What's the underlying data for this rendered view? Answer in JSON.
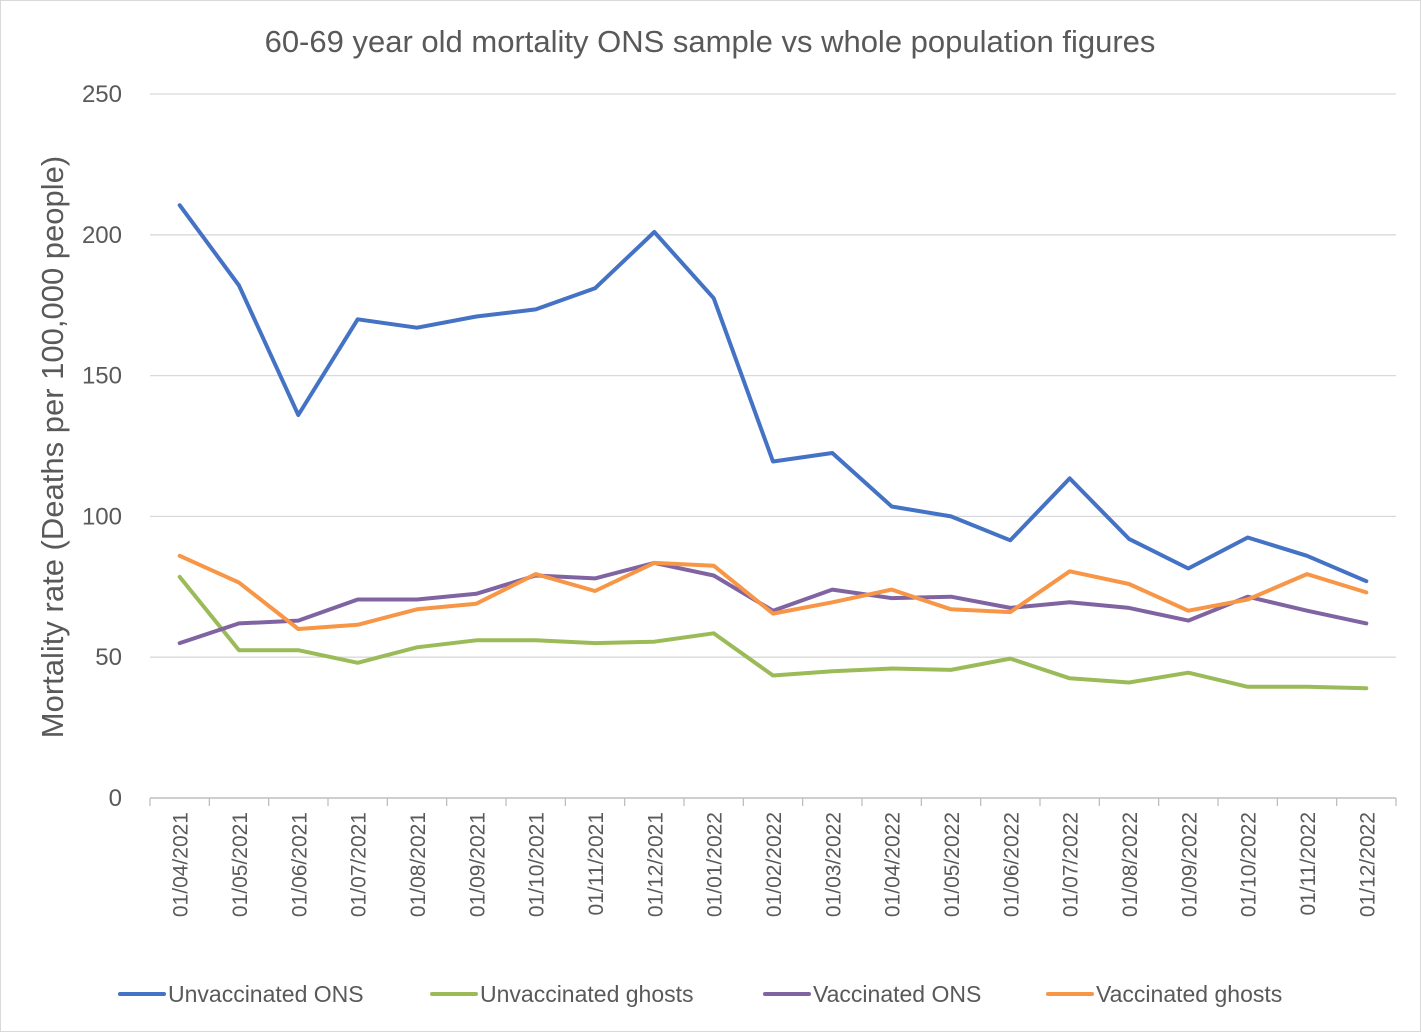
{
  "chart_data": {
    "type": "line",
    "title": "60-69 year old mortality ONS sample vs whole population figures",
    "xlabel": "",
    "ylabel": "Mortality rate (Deaths per 100,000 people)",
    "ylim": [
      0,
      250
    ],
    "yticks": [
      0,
      50,
      100,
      150,
      200,
      250
    ],
    "grid": true,
    "legend_position": "bottom",
    "categories": [
      "01/04/2021",
      "01/05/2021",
      "01/06/2021",
      "01/07/2021",
      "01/08/2021",
      "01/09/2021",
      "01/10/2021",
      "01/11/2021",
      "01/12/2021",
      "01/01/2022",
      "01/02/2022",
      "01/03/2022",
      "01/04/2022",
      "01/05/2022",
      "01/06/2022",
      "01/07/2022",
      "01/08/2022",
      "01/09/2022",
      "01/10/2022",
      "01/11/2022",
      "01/12/2022"
    ],
    "series": [
      {
        "name": "Unvaccinated ONS",
        "color": "#4472c4",
        "values": [
          210.5,
          182,
          136,
          170,
          167,
          171,
          173.5,
          181,
          201,
          177.5,
          119.5,
          122.5,
          103.5,
          100,
          91.5,
          113.5,
          92,
          81.5,
          92.5,
          86,
          77
        ]
      },
      {
        "name": "Unvaccinated ghosts",
        "color": "#9bbb59",
        "values": [
          78.5,
          52.5,
          52.5,
          48,
          53.5,
          56,
          56,
          55,
          55.5,
          58.5,
          43.5,
          45,
          46,
          45.5,
          49.5,
          42.5,
          41,
          44.5,
          39.5,
          39.5,
          39
        ]
      },
      {
        "name": "Vaccinated ONS",
        "color": "#8064a2",
        "values": [
          55,
          62,
          63,
          70.5,
          70.5,
          72.5,
          79,
          78,
          83.5,
          79,
          66.5,
          74,
          71,
          71.5,
          67.5,
          69.5,
          67.5,
          63,
          71.5,
          66.5,
          62
        ]
      },
      {
        "name": "Vaccinated ghosts",
        "color": "#f79646",
        "values": [
          86,
          76.5,
          60,
          61.5,
          67,
          69,
          79.5,
          73.5,
          83.5,
          82.5,
          65.5,
          69.5,
          74,
          67,
          66,
          80.5,
          76,
          66.5,
          70.5,
          79.5,
          73
        ]
      }
    ]
  },
  "colors": {
    "gridline": "#d9d9d9",
    "axis": "#bfbfbf",
    "text": "#595959"
  }
}
